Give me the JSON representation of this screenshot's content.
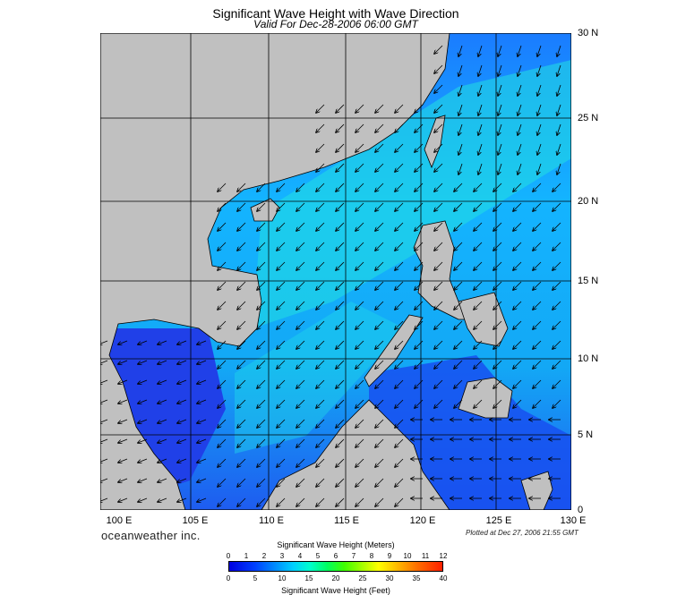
{
  "title": "Significant Wave Height with Wave Direction",
  "subtitle": "Valid For Dec-28-2006 06:00 GMT",
  "lat_labels": [
    "30 N",
    "25 N",
    "20 N",
    "15 N",
    "10 N",
    "5 N",
    "0"
  ],
  "lon_labels": [
    "100 E",
    "105 E",
    "110 E",
    "115 E",
    "120 E",
    "125 E",
    "130 E"
  ],
  "brand": "oceanweather inc.",
  "plotted": "Plotted at Dec 27, 2006 21:55 GMT",
  "colorbar": {
    "title_meters": "Significant Wave Height (Meters)",
    "title_feet": "Significant Wave Height (Feet)",
    "meter_ticks": [
      "0",
      "1",
      "2",
      "3",
      "4",
      "5",
      "6",
      "7",
      "8",
      "9",
      "10",
      "11",
      "12"
    ],
    "feet_ticks": [
      "0",
      "5",
      "10",
      "15",
      "20",
      "25",
      "30",
      "35",
      "40"
    ]
  },
  "colors": {
    "land": "#c0c0c0",
    "low": "#0033ff",
    "mid": "#0099ff",
    "high": "#00ffcc"
  }
}
